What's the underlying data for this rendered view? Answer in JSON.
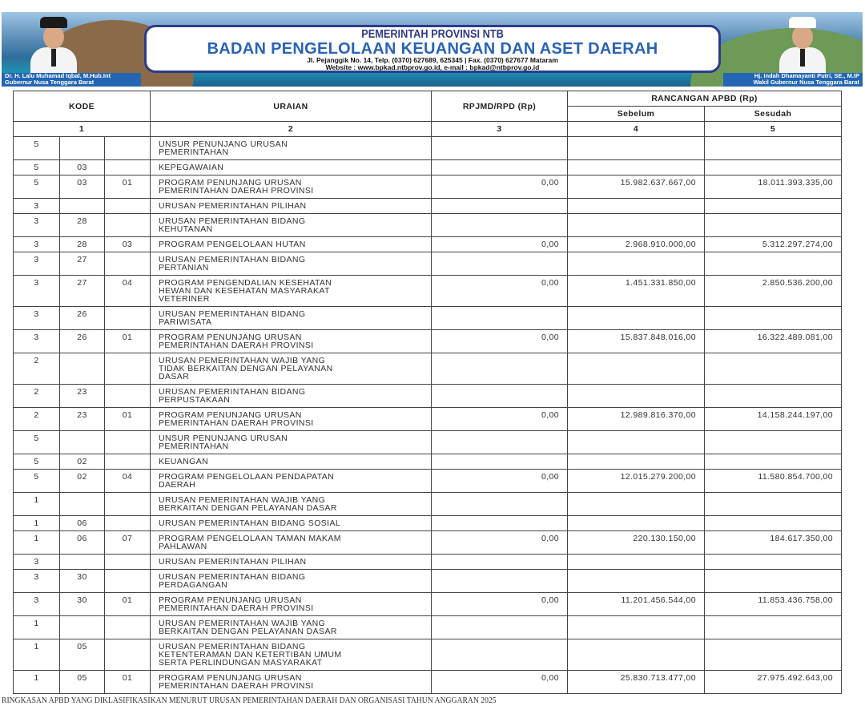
{
  "banner": {
    "line1": "PEMERINTAH PROVINSI NTB",
    "line2": "BADAN PENGELOLAAN KEUANGAN DAN ASET DAERAH",
    "line3": "Jl. Pejanggik No. 14, Telp. (0370) 627689, 625345 | Fax. (0370) 627677 Mataram",
    "line4": "Website : www.bpkad.ntbprov.go.id, e-mail : bpkad@ntbprov.go.id",
    "left_name": "Dr. H. Lalu Muhamad Iqbal, M.Hub.Int",
    "left_title": "Gubernur Nusa Tenggara Barat",
    "right_name": "Hj. Indah Dhamayanti Putri, SE., M.IP",
    "right_title": "Wakil Gubernur Nusa Tenggara Barat",
    "colors": {
      "title": "#2e3a8c",
      "subtitle": "#2a63b5",
      "caption_bg": "#2466b3"
    }
  },
  "table": {
    "headers": {
      "kode": "KODE",
      "uraian": "URAIAN",
      "rpjmd": "RPJMD/RPD (Rp)",
      "rancangan": "RANCANGAN APBD (Rp)",
      "sebelum": "Sebelum",
      "sesudah": "Sesudah"
    },
    "col_numbers": [
      "1",
      "2",
      "3",
      "4",
      "5"
    ],
    "rows": [
      {
        "k1": "5",
        "k2": "",
        "k3": "",
        "uraian": "UNSUR PENUNJANG URUSAN\nPEMERINTAHAN",
        "rpjmd": "",
        "sebelum": "",
        "sesudah": ""
      },
      {
        "k1": "5",
        "k2": "03",
        "k3": "",
        "uraian": "KEPEGAWAIAN",
        "rpjmd": "",
        "sebelum": "",
        "sesudah": ""
      },
      {
        "k1": "5",
        "k2": "03",
        "k3": "01",
        "uraian": "PROGRAM PENUNJANG URUSAN\nPEMERINTAHAN DAERAH PROVINSI",
        "rpjmd": "0,00",
        "sebelum": "15.982.637.667,00",
        "sesudah": "18.011.393.335,00"
      },
      {
        "k1": "3",
        "k2": "",
        "k3": "",
        "uraian": "URUSAN PEMERINTAHAN PILIHAN",
        "rpjmd": "",
        "sebelum": "",
        "sesudah": ""
      },
      {
        "k1": "3",
        "k2": "28",
        "k3": "",
        "uraian": "URUSAN PEMERINTAHAN BIDANG\nKEHUTANAN",
        "rpjmd": "",
        "sebelum": "",
        "sesudah": ""
      },
      {
        "k1": "3",
        "k2": "28",
        "k3": "03",
        "uraian": "PROGRAM PENGELOLAAN HUTAN",
        "rpjmd": "0,00",
        "sebelum": "2.968.910.000,00",
        "sesudah": "5.312.297.274,00"
      },
      {
        "k1": "3",
        "k2": "27",
        "k3": "",
        "uraian": "URUSAN PEMERINTAHAN BIDANG\nPERTANIAN",
        "rpjmd": "",
        "sebelum": "",
        "sesudah": ""
      },
      {
        "k1": "3",
        "k2": "27",
        "k3": "04",
        "uraian": "PROGRAM PENGENDALIAN KESEHATAN\nHEWAN DAN KESEHATAN MASYARAKAT\nVETERINER",
        "rpjmd": "0,00",
        "sebelum": "1.451.331.850,00",
        "sesudah": "2.850.536.200,00"
      },
      {
        "k1": "3",
        "k2": "26",
        "k3": "",
        "uraian": "URUSAN PEMERINTAHAN BIDANG\nPARIWISATA",
        "rpjmd": "",
        "sebelum": "",
        "sesudah": ""
      },
      {
        "k1": "3",
        "k2": "26",
        "k3": "01",
        "uraian": "PROGRAM PENUNJANG URUSAN\nPEMERINTAHAN DAERAH PROVINSI",
        "rpjmd": "0,00",
        "sebelum": "15.837.848.016,00",
        "sesudah": "16.322.489.081,00"
      },
      {
        "k1": "2",
        "k2": "",
        "k3": "",
        "uraian": "URUSAN PEMERINTAHAN WAJIB YANG\nTIDAK BERKAITAN DENGAN PELAYANAN\nDASAR",
        "rpjmd": "",
        "sebelum": "",
        "sesudah": ""
      },
      {
        "k1": "2",
        "k2": "23",
        "k3": "",
        "uraian": "URUSAN PEMERINTAHAN BIDANG\nPERPUSTAKAAN",
        "rpjmd": "",
        "sebelum": "",
        "sesudah": ""
      },
      {
        "k1": "2",
        "k2": "23",
        "k3": "01",
        "uraian": "PROGRAM PENUNJANG URUSAN\nPEMERINTAHAN DAERAH PROVINSI",
        "rpjmd": "0,00",
        "sebelum": "12.989.816.370,00",
        "sesudah": "14.158.244.197,00"
      },
      {
        "k1": "5",
        "k2": "",
        "k3": "",
        "uraian": "UNSUR PENUNJANG URUSAN\nPEMERINTAHAN",
        "rpjmd": "",
        "sebelum": "",
        "sesudah": ""
      },
      {
        "k1": "5",
        "k2": "02",
        "k3": "",
        "uraian": "KEUANGAN",
        "rpjmd": "",
        "sebelum": "",
        "sesudah": ""
      },
      {
        "k1": "5",
        "k2": "02",
        "k3": "04",
        "uraian": "PROGRAM PENGELOLAAN PENDAPATAN\nDAERAH",
        "rpjmd": "0,00",
        "sebelum": "12.015.279.200,00",
        "sesudah": "11.580.854.700,00"
      },
      {
        "k1": "1",
        "k2": "",
        "k3": "",
        "uraian": "URUSAN PEMERINTAHAN WAJIB YANG\nBERKAITAN DENGAN PELAYANAN DASAR",
        "rpjmd": "",
        "sebelum": "",
        "sesudah": ""
      },
      {
        "k1": "1",
        "k2": "06",
        "k3": "",
        "uraian": "URUSAN PEMERINTAHAN BIDANG SOSIAL",
        "rpjmd": "",
        "sebelum": "",
        "sesudah": ""
      },
      {
        "k1": "1",
        "k2": "06",
        "k3": "07",
        "uraian": "PROGRAM PENGELOLAAN TAMAN MAKAM\nPAHLAWAN",
        "rpjmd": "0,00",
        "sebelum": "220.130.150,00",
        "sesudah": "184.617.350,00"
      },
      {
        "k1": "3",
        "k2": "",
        "k3": "",
        "uraian": "URUSAN PEMERINTAHAN PILIHAN",
        "rpjmd": "",
        "sebelum": "",
        "sesudah": ""
      },
      {
        "k1": "3",
        "k2": "30",
        "k3": "",
        "uraian": "URUSAN PEMERINTAHAN BIDANG\nPERDAGANGAN",
        "rpjmd": "",
        "sebelum": "",
        "sesudah": ""
      },
      {
        "k1": "3",
        "k2": "30",
        "k3": "01",
        "uraian": "PROGRAM PENUNJANG URUSAN\nPEMERINTAHAN DAERAH PROVINSI",
        "rpjmd": "0,00",
        "sebelum": "11.201.456.544,00",
        "sesudah": "11.853.436.758,00"
      },
      {
        "k1": "1",
        "k2": "",
        "k3": "",
        "uraian": "URUSAN PEMERINTAHAN WAJIB YANG\nBERKAITAN DENGAN PELAYANAN DASAR",
        "rpjmd": "",
        "sebelum": "",
        "sesudah": ""
      },
      {
        "k1": "1",
        "k2": "05",
        "k3": "",
        "uraian": "URUSAN PEMERINTAHAN BIDANG\nKETENTERAMAN DAN KETERTIBAN UMUM\nSERTA PERLINDUNGAN MASYARAKAT",
        "rpjmd": "",
        "sebelum": "",
        "sesudah": ""
      },
      {
        "k1": "1",
        "k2": "05",
        "k3": "01",
        "uraian": "PROGRAM PENUNJANG URUSAN\nPEMERINTAHAN DAERAH PROVINSI",
        "rpjmd": "0,00",
        "sebelum": "25.830.713.477,00",
        "sesudah": "27.975.492.643,00"
      }
    ]
  },
  "footer": "RINGKASAN APBD YANG DIKLASIFIKASIKAN MENURUT URUSAN PEMERINTAHAN DAERAH DAN ORGANISASI TAHUN ANGGARAN 2025"
}
